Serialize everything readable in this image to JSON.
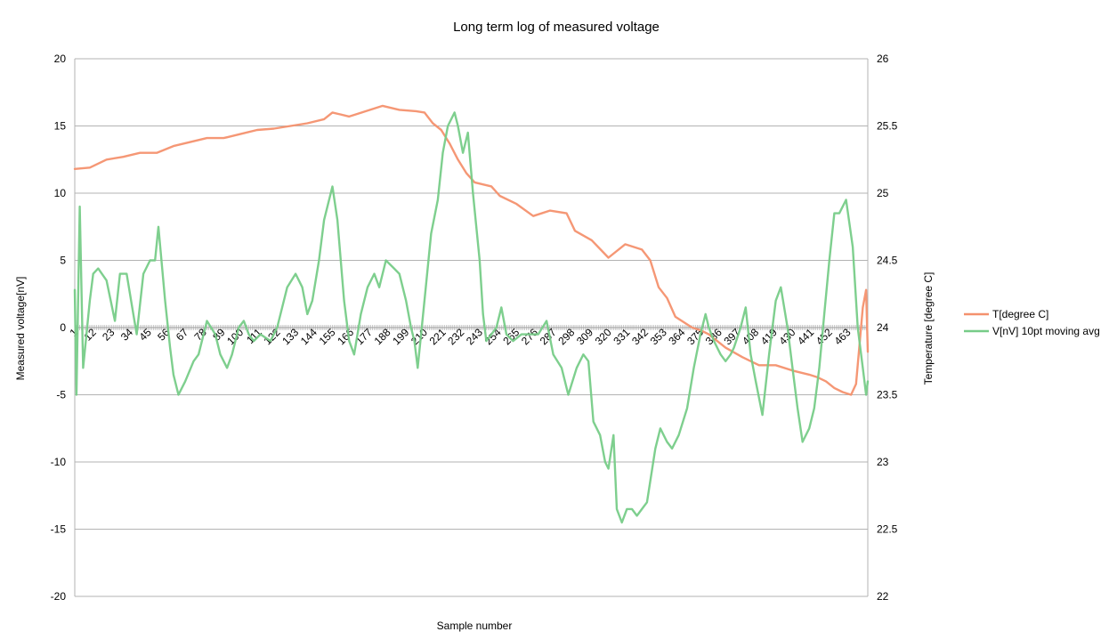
{
  "chart_data": {
    "type": "line",
    "title": "Long term log of measured voltage",
    "xlabel": "Sample number",
    "ylabel": "Measured voltage[nV]",
    "y2label": "Temperature [degree C]",
    "ylim": [
      -20,
      20
    ],
    "y2lim": [
      22,
      26
    ],
    "yticks": [
      "20",
      "15",
      "10",
      "5",
      "0",
      "-5",
      "-10",
      "-15",
      "-20"
    ],
    "y2ticks": [
      "26",
      "25.5",
      "25",
      "24.5",
      "24",
      "23.5",
      "23",
      "22.5",
      "22"
    ],
    "xlim": [
      1,
      475
    ],
    "x_tick_labels": [
      "1",
      "12",
      "23",
      "34",
      "45",
      "56",
      "67",
      "78",
      "89",
      "100",
      "111",
      "122",
      "133",
      "144",
      "155",
      "166",
      "177",
      "188",
      "199",
      "210",
      "221",
      "232",
      "243",
      "254",
      "265",
      "276",
      "287",
      "298",
      "309",
      "320",
      "331",
      "342",
      "353",
      "364",
      "375",
      "386",
      "397",
      "408",
      "419",
      "430",
      "441",
      "452",
      "463"
    ],
    "grid": "horizontal",
    "legend_position": "right",
    "series": [
      {
        "name": "T[degree C]",
        "axis": "secondary",
        "color": "#f4916e",
        "points": [
          [
            1,
            25.18
          ],
          [
            10,
            25.19
          ],
          [
            20,
            25.25
          ],
          [
            30,
            25.27
          ],
          [
            40,
            25.3
          ],
          [
            50,
            25.3
          ],
          [
            60,
            25.35
          ],
          [
            70,
            25.38
          ],
          [
            80,
            25.41
          ],
          [
            90,
            25.41
          ],
          [
            100,
            25.44
          ],
          [
            110,
            25.47
          ],
          [
            120,
            25.48
          ],
          [
            130,
            25.5
          ],
          [
            140,
            25.52
          ],
          [
            150,
            25.55
          ],
          [
            155,
            25.6
          ],
          [
            165,
            25.57
          ],
          [
            175,
            25.61
          ],
          [
            185,
            25.65
          ],
          [
            195,
            25.62
          ],
          [
            205,
            25.61
          ],
          [
            210,
            25.6
          ],
          [
            215,
            25.52
          ],
          [
            220,
            25.47
          ],
          [
            225,
            25.37
          ],
          [
            230,
            25.25
          ],
          [
            235,
            25.15
          ],
          [
            240,
            25.08
          ],
          [
            250,
            25.05
          ],
          [
            255,
            24.98
          ],
          [
            265,
            24.92
          ],
          [
            275,
            24.83
          ],
          [
            285,
            24.87
          ],
          [
            295,
            24.85
          ],
          [
            300,
            24.72
          ],
          [
            310,
            24.65
          ],
          [
            320,
            24.52
          ],
          [
            330,
            24.62
          ],
          [
            340,
            24.58
          ],
          [
            345,
            24.5
          ],
          [
            350,
            24.3
          ],
          [
            355,
            24.22
          ],
          [
            360,
            24.08
          ],
          [
            370,
            24.0
          ],
          [
            375,
            23.98
          ],
          [
            380,
            23.95
          ],
          [
            390,
            23.85
          ],
          [
            400,
            23.78
          ],
          [
            410,
            23.72
          ],
          [
            420,
            23.72
          ],
          [
            430,
            23.68
          ],
          [
            440,
            23.65
          ],
          [
            445,
            23.63
          ],
          [
            450,
            23.6
          ],
          [
            455,
            23.55
          ],
          [
            460,
            23.52
          ],
          [
            465,
            23.5
          ],
          [
            468,
            23.58
          ],
          [
            472,
            24.15
          ],
          [
            474,
            24.28
          ],
          [
            475,
            23.82
          ]
        ]
      },
      {
        "name": "V[nV]  10pt moving avg",
        "axis": "primary",
        "color": "#77cc88",
        "points": [
          [
            1,
            2.8
          ],
          [
            2,
            -5
          ],
          [
            4,
            9
          ],
          [
            6,
            -3
          ],
          [
            10,
            2
          ],
          [
            12,
            4
          ],
          [
            15,
            4.4
          ],
          [
            20,
            3.5
          ],
          [
            25,
            0.5
          ],
          [
            28,
            4
          ],
          [
            32,
            4
          ],
          [
            36,
            1
          ],
          [
            38,
            -0.5
          ],
          [
            42,
            4
          ],
          [
            46,
            5
          ],
          [
            49,
            5
          ],
          [
            51,
            7.5
          ],
          [
            55,
            2
          ],
          [
            58,
            -1.5
          ],
          [
            60,
            -3.5
          ],
          [
            63,
            -5
          ],
          [
            67,
            -4
          ],
          [
            72,
            -2.5
          ],
          [
            75,
            -2
          ],
          [
            80,
            0.5
          ],
          [
            85,
            -0.5
          ],
          [
            88,
            -2
          ],
          [
            92,
            -3
          ],
          [
            95,
            -2
          ],
          [
            99,
            0
          ],
          [
            102,
            0.5
          ],
          [
            105,
            -0.5
          ],
          [
            108,
            -1
          ],
          [
            112,
            -0.5
          ],
          [
            118,
            -1
          ],
          [
            122,
            0
          ],
          [
            128,
            3
          ],
          [
            133,
            4
          ],
          [
            137,
            3
          ],
          [
            140,
            1
          ],
          [
            143,
            2
          ],
          [
            147,
            5
          ],
          [
            150,
            8
          ],
          [
            155,
            10.5
          ],
          [
            158,
            8
          ],
          [
            162,
            2
          ],
          [
            165,
            -1
          ],
          [
            168,
            -2
          ],
          [
            172,
            1
          ],
          [
            176,
            3
          ],
          [
            180,
            4
          ],
          [
            183,
            3
          ],
          [
            187,
            5
          ],
          [
            191,
            4.5
          ],
          [
            195,
            4
          ],
          [
            199,
            2
          ],
          [
            202,
            0
          ],
          [
            204,
            -1
          ],
          [
            206,
            -3
          ],
          [
            210,
            2
          ],
          [
            214,
            7
          ],
          [
            218,
            9.5
          ],
          [
            221,
            13
          ],
          [
            224,
            15
          ],
          [
            228,
            16
          ],
          [
            230,
            15
          ],
          [
            233,
            13
          ],
          [
            236,
            14.5
          ],
          [
            239,
            10
          ],
          [
            243,
            5
          ],
          [
            245,
            1
          ],
          [
            247,
            -1
          ],
          [
            250,
            -0.5
          ],
          [
            253,
            0
          ],
          [
            256,
            1.5
          ],
          [
            259,
            -0.5
          ],
          [
            263,
            -1
          ],
          [
            268,
            -0.5
          ],
          [
            273,
            -0.5
          ],
          [
            278,
            -0.5
          ],
          [
            283,
            0.5
          ],
          [
            287,
            -2
          ],
          [
            292,
            -3
          ],
          [
            296,
            -5
          ],
          [
            301,
            -3
          ],
          [
            305,
            -2
          ],
          [
            308,
            -2.5
          ],
          [
            311,
            -7
          ],
          [
            315,
            -8
          ],
          [
            318,
            -10
          ],
          [
            320,
            -10.5
          ],
          [
            323,
            -8
          ],
          [
            325,
            -13.5
          ],
          [
            328,
            -14.5
          ],
          [
            331,
            -13.5
          ],
          [
            334,
            -13.5
          ],
          [
            337,
            -14
          ],
          [
            340,
            -13.5
          ],
          [
            343,
            -13
          ],
          [
            348,
            -9
          ],
          [
            351,
            -7.5
          ],
          [
            355,
            -8.5
          ],
          [
            358,
            -9
          ],
          [
            362,
            -8
          ],
          [
            367,
            -6
          ],
          [
            371,
            -3
          ],
          [
            375,
            -0.5
          ],
          [
            378,
            1
          ],
          [
            380,
            0
          ],
          [
            383,
            -1
          ],
          [
            387,
            -2
          ],
          [
            390,
            -2.5
          ],
          [
            393,
            -2
          ],
          [
            395,
            -1.5
          ],
          [
            399,
            0
          ],
          [
            402,
            1.5
          ],
          [
            405,
            -2
          ],
          [
            408,
            -4
          ],
          [
            412,
            -6.5
          ],
          [
            416,
            -2
          ],
          [
            420,
            2
          ],
          [
            423,
            3
          ],
          [
            427,
            0
          ],
          [
            430,
            -3
          ],
          [
            433,
            -6
          ],
          [
            436,
            -8.5
          ],
          [
            440,
            -7.5
          ],
          [
            443,
            -6
          ],
          [
            446,
            -3
          ],
          [
            449,
            1
          ],
          [
            452,
            5
          ],
          [
            455,
            8.5
          ],
          [
            458,
            8.5
          ],
          [
            462,
            9.5
          ],
          [
            466,
            6
          ],
          [
            469,
            0
          ],
          [
            472,
            -3
          ],
          [
            474,
            -5
          ],
          [
            475,
            -4
          ]
        ]
      }
    ]
  }
}
